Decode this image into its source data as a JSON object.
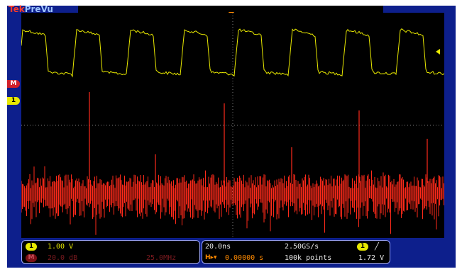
{
  "header": {
    "brand_primary": "Tek",
    "brand_secondary": "PreVu"
  },
  "markers": {
    "math": "M",
    "ch1": "1"
  },
  "channels": {
    "ch1_badge": "1",
    "ch1_scale": "1.00 V",
    "math_badge": "M",
    "math_scale": "20.0 dB",
    "math_center": "25.0MHz"
  },
  "timebase": {
    "horizontal_scale": "20.0ns",
    "sample_rate": "2.50GS/s",
    "delay_icon": "H▸▾",
    "delay": "0.00000 s",
    "record_length": "100k points"
  },
  "trigger": {
    "source_badge": "1",
    "slope_icon": "rising-edge-icon",
    "slope_glyph": "╱",
    "level": "1.72 V"
  },
  "colors": {
    "bezel": "#0d1f8c",
    "ch1_trace": "#e8e800",
    "math_trace": "#ff2a1a",
    "grid": "#7a7a7a",
    "trigger_marker": "#ff8a00"
  }
}
